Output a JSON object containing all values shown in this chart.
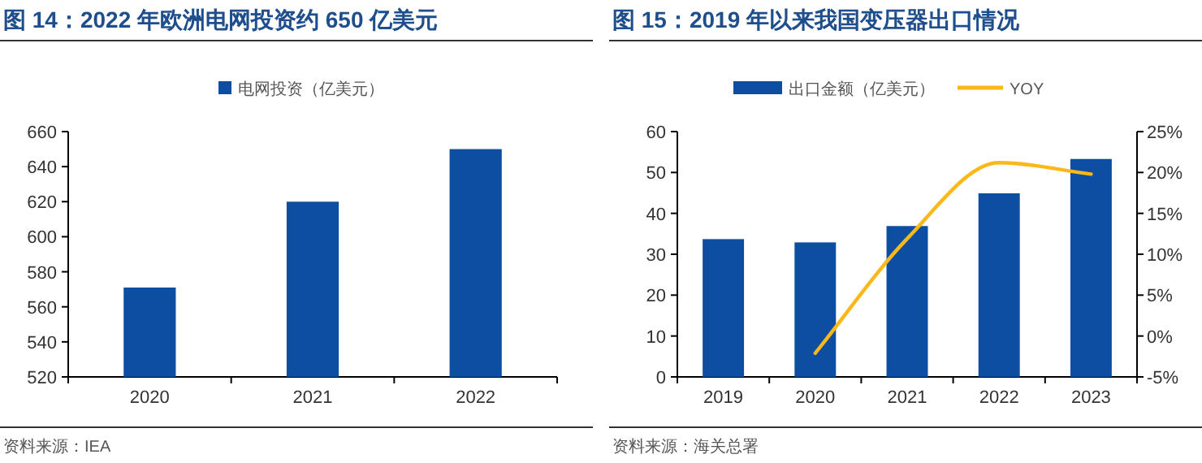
{
  "chart_data": [
    {
      "type": "bar",
      "title": "图 14：2022 年欧洲电网投资约 650 亿美元",
      "categories": [
        "2020",
        "2021",
        "2022"
      ],
      "series": [
        {
          "name": "电网投资（亿美元）",
          "color": "#0d4ea3",
          "values": [
            571,
            620,
            650
          ]
        }
      ],
      "ylim": [
        520,
        660
      ],
      "yticks": [
        520,
        540,
        560,
        580,
        600,
        620,
        640,
        660
      ],
      "legend": "top",
      "annotations": [
        "资料来源：IEA"
      ]
    },
    {
      "type": "bar",
      "title": "图 15：2019 年以来我国变压器出口情况",
      "categories": [
        "2019",
        "2020",
        "2021",
        "2022",
        "2023"
      ],
      "series": [
        {
          "name": "出口金额（亿美元）",
          "color": "#0d4ea3",
          "values": [
            33.7,
            32.9,
            36.9,
            44.9,
            53.3
          ]
        },
        {
          "name": "YOY",
          "type": "line",
          "axis": "y2",
          "color": "#fbb818",
          "values": [
            null,
            -2.1,
            11.9,
            21.2,
            19.8
          ]
        }
      ],
      "ylim": [
        0,
        60
      ],
      "yticks": [
        0,
        10,
        20,
        30,
        40,
        50,
        60
      ],
      "y2lim": [
        -5,
        25
      ],
      "y2ticks": [
        {
          "value": -5,
          "label": "-5%"
        },
        {
          "value": 0,
          "label": "0%"
        },
        {
          "value": 5,
          "label": "5%"
        },
        {
          "value": 10,
          "label": "10%"
        },
        {
          "value": 15,
          "label": "15%"
        },
        {
          "value": 20,
          "label": "20%"
        },
        {
          "value": 25,
          "label": "25%"
        }
      ],
      "legend": "top",
      "annotations": [
        "资料来源：海关总署"
      ]
    }
  ]
}
